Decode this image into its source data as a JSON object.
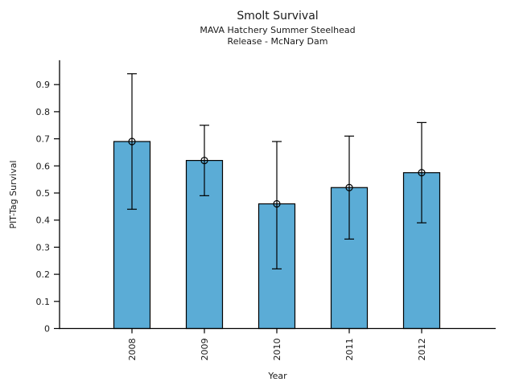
{
  "chart_data": {
    "type": "bar",
    "title": "Smolt Survival",
    "subtitle1": "MAVA Hatchery Summer Steelhead",
    "subtitle2": "Release - McNary Dam",
    "xlabel": "Year",
    "ylabel": "PIT-Tag Survival",
    "categories": [
      "2008",
      "2009",
      "2010",
      "2011",
      "2012"
    ],
    "values": [
      0.69,
      0.62,
      0.46,
      0.52,
      0.575
    ],
    "error_low": [
      0.44,
      0.49,
      0.22,
      0.33,
      0.39
    ],
    "error_high": [
      0.94,
      0.75,
      0.69,
      0.71,
      0.76
    ],
    "yticks": [
      0,
      0.1,
      0.2,
      0.3,
      0.4,
      0.5,
      0.6,
      0.7,
      0.8,
      0.9
    ],
    "ytick_labels": [
      "0",
      "0.1",
      "0.2",
      "0.3",
      "0.4",
      "0.5",
      "0.6",
      "0.7",
      "0.8",
      "0.9"
    ],
    "ylim": [
      0,
      0.99
    ],
    "grid": false,
    "legend": "none",
    "marker": "open-circle",
    "colors": {
      "bar_fill": "#5BACD6",
      "bar_edge": "#000000",
      "error_bar": "#000000",
      "axis": "#000000",
      "text": "#1a1a1a",
      "background": "#FFFFFF"
    }
  }
}
